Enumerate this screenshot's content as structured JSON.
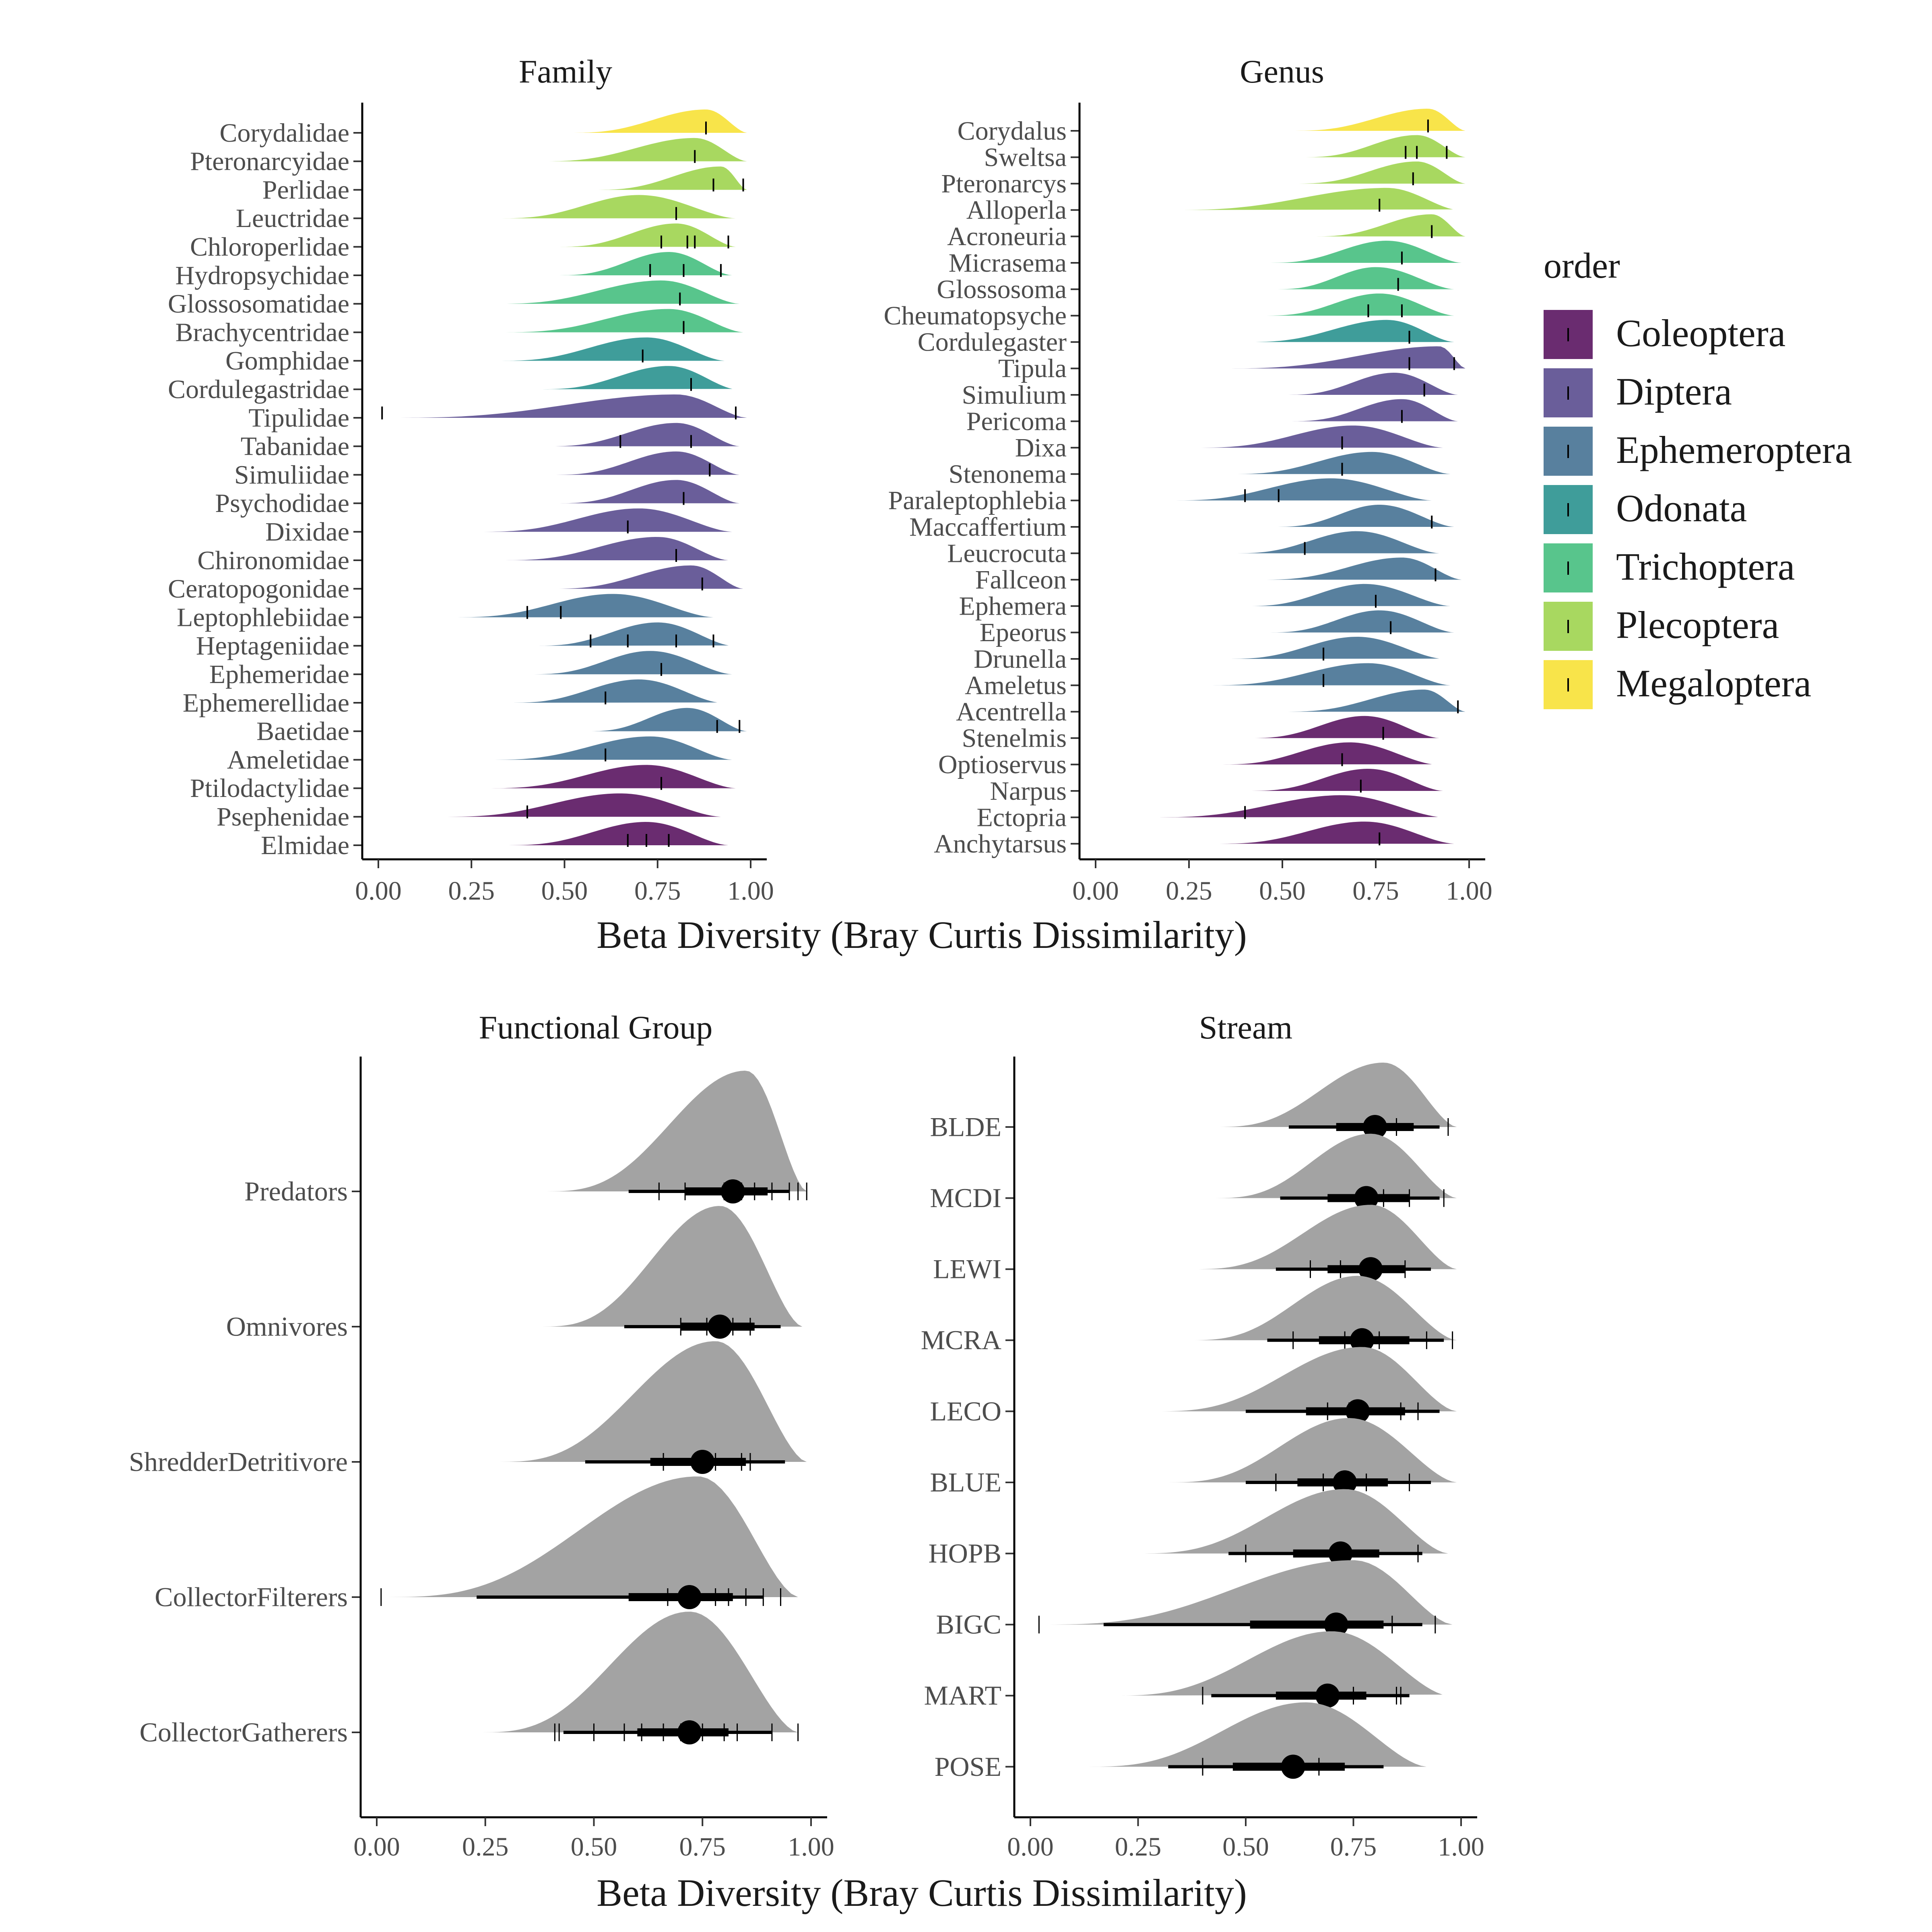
{
  "colors": {
    "Coleoptera": "#6a2c70",
    "Diptera": "#6a5e9a",
    "Ephemeroptera": "#58809e",
    "Odonata": "#3f9d9a",
    "Trichoptera": "#58c58c",
    "Plecoptera": "#a8d860",
    "Megaloptera": "#f8e44a",
    "grey": "#a3a3a3",
    "interval": "#000000"
  },
  "legend": {
    "title": "order",
    "items": [
      "Coleoptera",
      "Diptera",
      "Ephemeroptera",
      "Odonata",
      "Trichoptera",
      "Plecoptera",
      "Megaloptera"
    ]
  },
  "x_axis_label": "Beta Diversity (Bray Curtis Dissimilarity)",
  "chart_data": [
    {
      "panel": "Family",
      "type": "ridgeline",
      "title": "Family",
      "xlabel": "",
      "xlim": [
        0,
        1
      ],
      "xticks": [
        "0.00",
        "0.25",
        "0.50",
        "0.75",
        "1.00"
      ],
      "rows": [
        {
          "label": "Corydalidae",
          "order": "Megaloptera",
          "min": 0.5,
          "mode": 0.88,
          "max": 0.99,
          "ticks": [
            0.88
          ]
        },
        {
          "label": "Pteronarcyidae",
          "order": "Plecoptera",
          "min": 0.42,
          "mode": 0.85,
          "max": 0.99,
          "ticks": [
            0.85
          ]
        },
        {
          "label": "Perlidae",
          "order": "Plecoptera",
          "min": 0.57,
          "mode": 0.92,
          "max": 0.99,
          "ticks": [
            0.9,
            0.98
          ]
        },
        {
          "label": "Leuctridae",
          "order": "Plecoptera",
          "min": 0.31,
          "mode": 0.7,
          "max": 0.96,
          "ticks": [
            0.8
          ]
        },
        {
          "label": "Chloroperlidae",
          "order": "Plecoptera",
          "min": 0.47,
          "mode": 0.8,
          "max": 0.96,
          "ticks": [
            0.76,
            0.83,
            0.85,
            0.94
          ]
        },
        {
          "label": "Hydropsychidae",
          "order": "Trichoptera",
          "min": 0.47,
          "mode": 0.78,
          "max": 0.95,
          "ticks": [
            0.73,
            0.82,
            0.92
          ]
        },
        {
          "label": "Glossosomatidae",
          "order": "Trichoptera",
          "min": 0.3,
          "mode": 0.76,
          "max": 0.97,
          "ticks": [
            0.81
          ]
        },
        {
          "label": "Brachycentridae",
          "order": "Trichoptera",
          "min": 0.32,
          "mode": 0.78,
          "max": 0.98,
          "ticks": [
            0.82
          ]
        },
        {
          "label": "Gomphidae",
          "order": "Odonata",
          "min": 0.31,
          "mode": 0.72,
          "max": 0.93,
          "ticks": [
            0.71
          ]
        },
        {
          "label": "Cordulegastridae",
          "order": "Odonata",
          "min": 0.42,
          "mode": 0.78,
          "max": 0.96,
          "ticks": [
            0.84
          ]
        },
        {
          "label": "Tipulidae",
          "order": "Diptera",
          "min": 0.01,
          "mode": 0.8,
          "max": 0.99,
          "ticks": [
            0.01,
            0.96
          ]
        },
        {
          "label": "Tabanidae",
          "order": "Diptera",
          "min": 0.44,
          "mode": 0.8,
          "max": 0.97,
          "ticks": [
            0.65,
            0.84
          ]
        },
        {
          "label": "Simuliidae",
          "order": "Diptera",
          "min": 0.46,
          "mode": 0.8,
          "max": 0.97,
          "ticks": [
            0.89
          ]
        },
        {
          "label": "Psychodidae",
          "order": "Diptera",
          "min": 0.47,
          "mode": 0.8,
          "max": 0.97,
          "ticks": [
            0.82
          ]
        },
        {
          "label": "Dixidae",
          "order": "Diptera",
          "min": 0.26,
          "mode": 0.7,
          "max": 0.95,
          "ticks": [
            0.67
          ]
        },
        {
          "label": "Chironomidae",
          "order": "Diptera",
          "min": 0.32,
          "mode": 0.75,
          "max": 0.94,
          "ticks": [
            0.8
          ]
        },
        {
          "label": "Ceratopogonidae",
          "order": "Diptera",
          "min": 0.45,
          "mode": 0.84,
          "max": 0.98,
          "ticks": [
            0.87
          ]
        },
        {
          "label": "Leptophlebiidae",
          "order": "Ephemeroptera",
          "min": 0.19,
          "mode": 0.63,
          "max": 0.9,
          "ticks": [
            0.4,
            0.49
          ]
        },
        {
          "label": "Heptageniidae",
          "order": "Ephemeroptera",
          "min": 0.41,
          "mode": 0.75,
          "max": 0.95,
          "ticks": [
            0.57,
            0.67,
            0.8,
            0.9
          ]
        },
        {
          "label": "Ephemeridae",
          "order": "Ephemeroptera",
          "min": 0.4,
          "mode": 0.73,
          "max": 0.95,
          "ticks": [
            0.76
          ]
        },
        {
          "label": "Ephemerellidae",
          "order": "Ephemeroptera",
          "min": 0.34,
          "mode": 0.7,
          "max": 0.92,
          "ticks": [
            0.61
          ]
        },
        {
          "label": "Baetidae",
          "order": "Ephemeroptera",
          "min": 0.55,
          "mode": 0.83,
          "max": 0.99,
          "ticks": [
            0.91,
            0.97
          ]
        },
        {
          "label": "Ameletidae",
          "order": "Ephemeroptera",
          "min": 0.29,
          "mode": 0.73,
          "max": 0.95,
          "ticks": [
            0.61
          ]
        },
        {
          "label": "Ptilodactylidae",
          "order": "Coleoptera",
          "min": 0.28,
          "mode": 0.72,
          "max": 0.96,
          "ticks": [
            0.76
          ]
        },
        {
          "label": "Psephenidae",
          "order": "Coleoptera",
          "min": 0.16,
          "mode": 0.65,
          "max": 0.92,
          "ticks": [
            0.4
          ]
        },
        {
          "label": "Elmidae",
          "order": "Coleoptera",
          "min": 0.33,
          "mode": 0.72,
          "max": 0.94,
          "ticks": [
            0.67,
            0.72,
            0.78
          ]
        }
      ]
    },
    {
      "panel": "Genus",
      "type": "ridgeline",
      "title": "Genus",
      "xlabel": "",
      "xlim": [
        0,
        1
      ],
      "xticks": [
        "0.00",
        "0.25",
        "0.50",
        "0.75",
        "1.00"
      ],
      "rows": [
        {
          "label": "Corydalus",
          "order": "Megaloptera",
          "min": 0.51,
          "mode": 0.89,
          "max": 0.99,
          "ticks": [
            0.89
          ]
        },
        {
          "label": "Sweltsa",
          "order": "Plecoptera",
          "min": 0.54,
          "mode": 0.86,
          "max": 0.99,
          "ticks": [
            0.83,
            0.86,
            0.94
          ]
        },
        {
          "label": "Pteronarcys",
          "order": "Plecoptera",
          "min": 0.52,
          "mode": 0.86,
          "max": 0.99,
          "ticks": [
            0.85
          ]
        },
        {
          "label": "Alloperla",
          "order": "Plecoptera",
          "min": 0.18,
          "mode": 0.78,
          "max": 0.97,
          "ticks": [
            0.76
          ]
        },
        {
          "label": "Acroneuria",
          "order": "Plecoptera",
          "min": 0.57,
          "mode": 0.9,
          "max": 0.99,
          "ticks": [
            0.9
          ]
        },
        {
          "label": "Micrasema",
          "order": "Trichoptera",
          "min": 0.45,
          "mode": 0.78,
          "max": 0.98,
          "ticks": [
            0.82
          ]
        },
        {
          "label": "Glossosoma",
          "order": "Trichoptera",
          "min": 0.47,
          "mode": 0.75,
          "max": 0.96,
          "ticks": [
            0.81
          ]
        },
        {
          "label": "Cheumatopsyche",
          "order": "Trichoptera",
          "min": 0.44,
          "mode": 0.76,
          "max": 0.96,
          "ticks": [
            0.73,
            0.82
          ]
        },
        {
          "label": "Cordulegaster",
          "order": "Odonata",
          "min": 0.39,
          "mode": 0.78,
          "max": 0.96,
          "ticks": [
            0.84
          ]
        },
        {
          "label": "Tipula",
          "order": "Diptera",
          "min": 0.33,
          "mode": 0.92,
          "max": 0.99,
          "ticks": [
            0.84,
            0.96
          ]
        },
        {
          "label": "Simulium",
          "order": "Diptera",
          "min": 0.5,
          "mode": 0.8,
          "max": 0.97,
          "ticks": [
            0.88
          ]
        },
        {
          "label": "Pericoma",
          "order": "Diptera",
          "min": 0.51,
          "mode": 0.82,
          "max": 0.97,
          "ticks": [
            0.82
          ]
        },
        {
          "label": "Dixa",
          "order": "Diptera",
          "min": 0.26,
          "mode": 0.69,
          "max": 0.93,
          "ticks": [
            0.66
          ]
        },
        {
          "label": "Stenonema",
          "order": "Ephemeroptera",
          "min": 0.35,
          "mode": 0.74,
          "max": 0.95,
          "ticks": [
            0.66
          ]
        },
        {
          "label": "Paraleptophlebia",
          "order": "Ephemeroptera",
          "min": 0.19,
          "mode": 0.63,
          "max": 0.9,
          "ticks": [
            0.4,
            0.49
          ]
        },
        {
          "label": "Maccaffertium",
          "order": "Ephemeroptera",
          "min": 0.47,
          "mode": 0.76,
          "max": 0.96,
          "ticks": [
            0.9
          ]
        },
        {
          "label": "Leucrocuta",
          "order": "Ephemeroptera",
          "min": 0.36,
          "mode": 0.7,
          "max": 0.92,
          "ticks": [
            0.56
          ]
        },
        {
          "label": "Fallceon",
          "order": "Ephemeroptera",
          "min": 0.43,
          "mode": 0.82,
          "max": 0.98,
          "ticks": [
            0.91
          ]
        },
        {
          "label": "Ephemera",
          "order": "Ephemeroptera",
          "min": 0.39,
          "mode": 0.72,
          "max": 0.95,
          "ticks": [
            0.75
          ]
        },
        {
          "label": "Epeorus",
          "order": "Ephemeroptera",
          "min": 0.45,
          "mode": 0.76,
          "max": 0.96,
          "ticks": [
            0.79
          ]
        },
        {
          "label": "Drunella",
          "order": "Ephemeroptera",
          "min": 0.34,
          "mode": 0.7,
          "max": 0.93,
          "ticks": [
            0.61
          ]
        },
        {
          "label": "Ameletus",
          "order": "Ephemeroptera",
          "min": 0.29,
          "mode": 0.73,
          "max": 0.95,
          "ticks": [
            0.61
          ]
        },
        {
          "label": "Acentrella",
          "order": "Ephemeroptera",
          "min": 0.49,
          "mode": 0.88,
          "max": 0.99,
          "ticks": [
            0.97
          ]
        },
        {
          "label": "Stenelmis",
          "order": "Coleoptera",
          "min": 0.4,
          "mode": 0.72,
          "max": 0.92,
          "ticks": [
            0.77
          ]
        },
        {
          "label": "Optioservus",
          "order": "Coleoptera",
          "min": 0.32,
          "mode": 0.68,
          "max": 0.91,
          "ticks": [
            0.66
          ]
        },
        {
          "label": "Narpus",
          "order": "Coleoptera",
          "min": 0.4,
          "mode": 0.73,
          "max": 0.93,
          "ticks": [
            0.71
          ]
        },
        {
          "label": "Ectopria",
          "order": "Coleoptera",
          "min": 0.14,
          "mode": 0.66,
          "max": 0.93,
          "ticks": [
            0.4
          ]
        },
        {
          "label": "Anchytarsus",
          "order": "Coleoptera",
          "min": 0.31,
          "mode": 0.72,
          "max": 0.96,
          "ticks": [
            0.76
          ]
        }
      ]
    },
    {
      "panel": "Functional Group",
      "type": "halfeye",
      "title": "Functional Group",
      "xlabel": "Beta Diversity (Bray Curtis Dissimilarity)",
      "xlim": [
        0,
        1
      ],
      "xticks": [
        "0.00",
        "0.25",
        "0.50",
        "0.75",
        "1.00"
      ],
      "rows": [
        {
          "label": "Predators",
          "min": 0.38,
          "mode": 0.85,
          "max": 0.99,
          "point": 0.82,
          "q66": [
            0.71,
            0.9
          ],
          "q95": [
            0.58,
            0.95
          ],
          "ticks": [
            0.65,
            0.71,
            0.8,
            0.84,
            0.87,
            0.91,
            0.95,
            0.97,
            0.99
          ]
        },
        {
          "label": "Omnivores",
          "min": 0.37,
          "mode": 0.79,
          "max": 0.98,
          "point": 0.79,
          "q66": [
            0.7,
            0.87
          ],
          "q95": [
            0.57,
            0.93
          ],
          "ticks": [
            0.7,
            0.76,
            0.82,
            0.86
          ]
        },
        {
          "label": "ShredderDetritivore",
          "min": 0.27,
          "mode": 0.78,
          "max": 0.99,
          "point": 0.75,
          "q66": [
            0.63,
            0.85
          ],
          "q95": [
            0.48,
            0.94
          ],
          "ticks": [
            0.66,
            0.78,
            0.84,
            0.86
          ]
        },
        {
          "label": "CollectorFilterers",
          "min": 0.01,
          "mode": 0.74,
          "max": 0.97,
          "point": 0.72,
          "q66": [
            0.58,
            0.82
          ],
          "q95": [
            0.23,
            0.89
          ],
          "ticks": [
            0.01,
            0.67,
            0.73,
            0.78,
            0.81,
            0.85,
            0.89,
            0.93
          ]
        },
        {
          "label": "CollectorGatherers",
          "min": 0.23,
          "mode": 0.72,
          "max": 0.97,
          "point": 0.72,
          "q66": [
            0.6,
            0.81
          ],
          "q95": [
            0.43,
            0.91
          ],
          "ticks": [
            0.41,
            0.42,
            0.5,
            0.57,
            0.61,
            0.66,
            0.7,
            0.75,
            0.8,
            0.83,
            0.91,
            0.97
          ]
        }
      ]
    },
    {
      "panel": "Stream",
      "type": "halfeye",
      "title": "Stream",
      "xlabel": "",
      "xlim": [
        0,
        1
      ],
      "xticks": [
        "0.00",
        "0.25",
        "0.50",
        "0.75",
        "1.00"
      ],
      "rows": [
        {
          "label": "BLDE",
          "min": 0.42,
          "mode": 0.82,
          "max": 0.99,
          "point": 0.8,
          "q66": [
            0.71,
            0.89
          ],
          "q95": [
            0.6,
            0.95
          ],
          "ticks": [
            0.79,
            0.85,
            0.97
          ]
        },
        {
          "label": "MCDI",
          "min": 0.42,
          "mode": 0.79,
          "max": 0.99,
          "point": 0.78,
          "q66": [
            0.69,
            0.88
          ],
          "q95": [
            0.58,
            0.95
          ],
          "ticks": [
            0.82,
            0.88,
            0.96
          ]
        },
        {
          "label": "LEWI",
          "min": 0.37,
          "mode": 0.79,
          "max": 0.99,
          "point": 0.79,
          "q66": [
            0.69,
            0.87
          ],
          "q95": [
            0.57,
            0.93
          ],
          "ticks": [
            0.65,
            0.72,
            0.87
          ]
        },
        {
          "label": "MCRA",
          "min": 0.36,
          "mode": 0.76,
          "max": 0.99,
          "point": 0.77,
          "q66": [
            0.67,
            0.88
          ],
          "q95": [
            0.55,
            0.96
          ],
          "ticks": [
            0.61,
            0.73,
            0.81,
            0.92,
            0.98
          ]
        },
        {
          "label": "LECO",
          "min": 0.28,
          "mode": 0.77,
          "max": 0.99,
          "point": 0.76,
          "q66": [
            0.64,
            0.87
          ],
          "q95": [
            0.5,
            0.95
          ],
          "ticks": [
            0.69,
            0.74,
            0.86,
            0.9
          ]
        },
        {
          "label": "BLUE",
          "min": 0.31,
          "mode": 0.74,
          "max": 0.99,
          "point": 0.73,
          "q66": [
            0.62,
            0.83
          ],
          "q95": [
            0.5,
            0.93
          ],
          "ticks": [
            0.57,
            0.68,
            0.78,
            0.88
          ]
        },
        {
          "label": "HOPB",
          "min": 0.24,
          "mode": 0.73,
          "max": 0.97,
          "point": 0.72,
          "q66": [
            0.61,
            0.81
          ],
          "q95": [
            0.46,
            0.91
          ],
          "ticks": [
            0.5,
            0.9
          ]
        },
        {
          "label": "BIGC",
          "min": 0.01,
          "mode": 0.75,
          "max": 0.98,
          "point": 0.71,
          "q66": [
            0.51,
            0.82
          ],
          "q95": [
            0.17,
            0.91
          ],
          "ticks": [
            0.02,
            0.71,
            0.84,
            0.94
          ]
        },
        {
          "label": "MART",
          "min": 0.18,
          "mode": 0.7,
          "max": 0.97,
          "point": 0.69,
          "q66": [
            0.57,
            0.78
          ],
          "q95": [
            0.42,
            0.88
          ],
          "ticks": [
            0.4,
            0.75,
            0.85,
            0.86
          ]
        },
        {
          "label": "POSE",
          "min": 0.12,
          "mode": 0.64,
          "max": 0.92,
          "point": 0.61,
          "q66": [
            0.47,
            0.73
          ],
          "q95": [
            0.32,
            0.82
          ],
          "ticks": [
            0.4,
            0.67
          ]
        }
      ]
    }
  ]
}
